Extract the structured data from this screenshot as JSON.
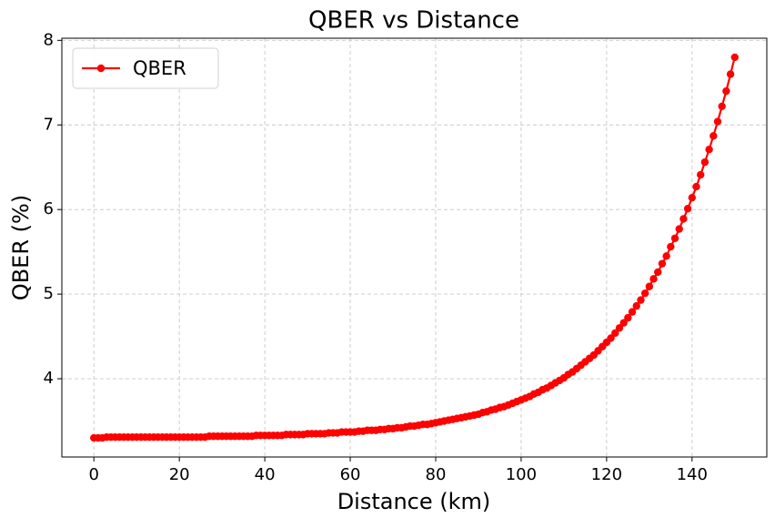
{
  "chart_data": {
    "type": "line",
    "title": "QBER vs Distance",
    "x_label": "Distance (km)",
    "y_label": "QBER (%)",
    "x": [
      0,
      1,
      2,
      3,
      4,
      5,
      6,
      7,
      8,
      9,
      10,
      11,
      12,
      13,
      14,
      15,
      16,
      17,
      18,
      19,
      20,
      21,
      22,
      23,
      24,
      25,
      26,
      27,
      28,
      29,
      30,
      31,
      32,
      33,
      34,
      35,
      36,
      37,
      38,
      39,
      40,
      41,
      42,
      43,
      44,
      45,
      46,
      47,
      48,
      49,
      50,
      51,
      52,
      53,
      54,
      55,
      56,
      57,
      58,
      59,
      60,
      61,
      62,
      63,
      64,
      65,
      66,
      67,
      68,
      69,
      70,
      71,
      72,
      73,
      74,
      75,
      76,
      77,
      78,
      79,
      80,
      81,
      82,
      83,
      84,
      85,
      86,
      87,
      88,
      89,
      90,
      91,
      92,
      93,
      94,
      95,
      96,
      97,
      98,
      99,
      100,
      101,
      102,
      103,
      104,
      105,
      106,
      107,
      108,
      109,
      110,
      111,
      112,
      113,
      114,
      115,
      116,
      117,
      118,
      119,
      120,
      121,
      122,
      123,
      124,
      125,
      126,
      127,
      128,
      129,
      130,
      131,
      132,
      133,
      134,
      135,
      136,
      137,
      138,
      139,
      140,
      141,
      142,
      143,
      144,
      145,
      146,
      147,
      148,
      149,
      150
    ],
    "series": [
      {
        "name": "QBER",
        "color": "#ff0000",
        "values": [
          3.3,
          3.3,
          3.3,
          3.31,
          3.31,
          3.31,
          3.31,
          3.31,
          3.31,
          3.31,
          3.31,
          3.31,
          3.31,
          3.31,
          3.31,
          3.31,
          3.31,
          3.31,
          3.31,
          3.31,
          3.31,
          3.31,
          3.31,
          3.31,
          3.31,
          3.31,
          3.31,
          3.32,
          3.32,
          3.32,
          3.32,
          3.32,
          3.32,
          3.32,
          3.32,
          3.32,
          3.32,
          3.32,
          3.33,
          3.33,
          3.33,
          3.33,
          3.33,
          3.33,
          3.33,
          3.34,
          3.34,
          3.34,
          3.34,
          3.34,
          3.35,
          3.35,
          3.35,
          3.35,
          3.35,
          3.36,
          3.36,
          3.36,
          3.37,
          3.37,
          3.37,
          3.37,
          3.38,
          3.38,
          3.39,
          3.39,
          3.39,
          3.4,
          3.4,
          3.41,
          3.41,
          3.42,
          3.42,
          3.43,
          3.44,
          3.44,
          3.45,
          3.46,
          3.46,
          3.47,
          3.48,
          3.49,
          3.5,
          3.51,
          3.52,
          3.53,
          3.54,
          3.55,
          3.56,
          3.57,
          3.58,
          3.6,
          3.61,
          3.63,
          3.64,
          3.66,
          3.67,
          3.69,
          3.71,
          3.73,
          3.75,
          3.77,
          3.79,
          3.82,
          3.84,
          3.87,
          3.89,
          3.92,
          3.95,
          3.98,
          4.01,
          4.05,
          4.08,
          4.12,
          4.16,
          4.2,
          4.24,
          4.28,
          4.33,
          4.38,
          4.43,
          4.48,
          4.54,
          4.6,
          4.66,
          4.72,
          4.79,
          4.86,
          4.93,
          5.01,
          5.09,
          5.18,
          5.26,
          5.36,
          5.45,
          5.56,
          5.66,
          5.77,
          5.89,
          6.01,
          6.14,
          6.27,
          6.41,
          6.56,
          6.71,
          6.87,
          7.04,
          7.22,
          7.4,
          7.6,
          7.8
        ]
      }
    ],
    "xlim": [
      -7.5,
      157.5
    ],
    "ylim": [
      3.075,
      8.025
    ],
    "xticks": [
      0,
      20,
      40,
      60,
      80,
      100,
      120,
      140
    ],
    "yticks": [
      4,
      5,
      6,
      7,
      8
    ],
    "grid": true,
    "legend": "upper left"
  }
}
